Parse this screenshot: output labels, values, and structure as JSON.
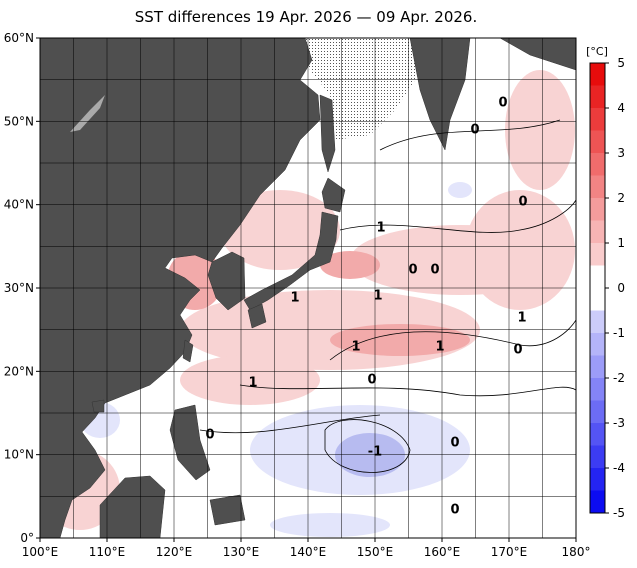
{
  "title": "SST differences 19 Apr. 2026 — 09 Apr. 2026.",
  "colorbar": {
    "unit": "[°C]",
    "ticks": [
      5,
      4,
      3,
      2,
      1,
      0,
      -1,
      -2,
      -3,
      -4,
      -5
    ]
  },
  "axes": {
    "x_labels": [
      "100°E",
      "110°E",
      "120°E",
      "130°E",
      "140°E",
      "150°E",
      "160°E",
      "170°E",
      "180°"
    ],
    "y_labels": [
      "0°",
      "10°N",
      "20°N",
      "30°N",
      "40°N",
      "50°N",
      "60°N"
    ]
  },
  "contour_labels": [
    "0",
    "0",
    "1",
    "0",
    "0",
    "1",
    "1",
    "1",
    "0",
    "1",
    "0",
    "1",
    "1",
    "-1",
    "0",
    "0",
    "0",
    "0"
  ]
}
